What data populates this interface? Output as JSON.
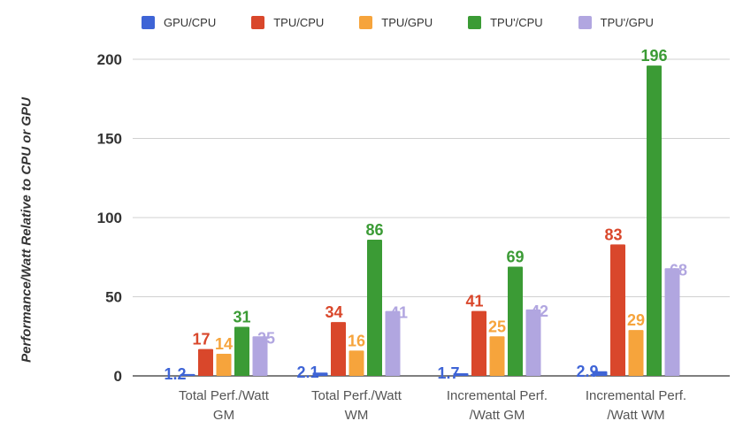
{
  "chart_data": {
    "type": "bar",
    "title": "",
    "xlabel": "",
    "ylabel": "Performance/Watt Relative to CPU or GPU",
    "ylim": [
      0,
      210
    ],
    "yticks": [
      0,
      50,
      100,
      150,
      200
    ],
    "grid": true,
    "legend_position": "top",
    "categories": [
      [
        "Total Perf./Watt",
        "GM"
      ],
      [
        "Total Perf./Watt",
        "WM"
      ],
      [
        "Incremental Perf.",
        "/Watt GM"
      ],
      [
        "Incremental Perf.",
        "/Watt WM"
      ]
    ],
    "series": [
      {
        "name": "GPU/CPU",
        "color": "#3e64d6",
        "values": [
          1.2,
          2.1,
          1.7,
          2.9
        ]
      },
      {
        "name": "TPU/CPU",
        "color": "#d9472b",
        "values": [
          17,
          34,
          41,
          83
        ]
      },
      {
        "name": "TPU/GPU",
        "color": "#f6a43c",
        "values": [
          14,
          16,
          25,
          29
        ]
      },
      {
        "name": "TPU'/CPU",
        "color": "#3b9b35",
        "values": [
          31,
          86,
          69,
          196
        ]
      },
      {
        "name": "TPU'/GPU",
        "color": "#b1a6e0",
        "values": [
          25,
          41,
          42,
          68
        ]
      }
    ]
  }
}
